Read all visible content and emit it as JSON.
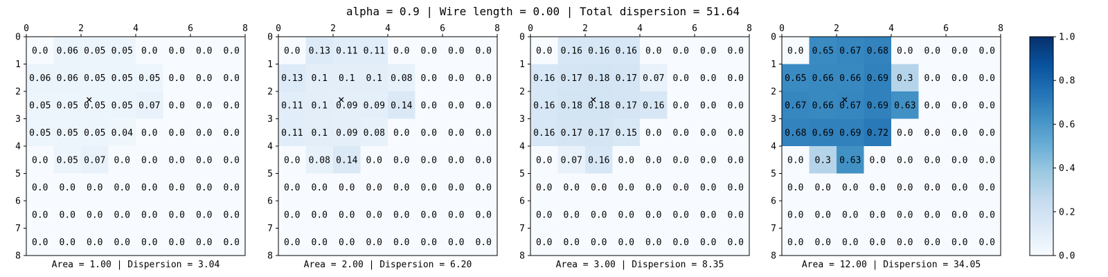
{
  "figure_title": "alpha = 0.9 | Wire length = 0.00 | Total dispersion = 51.64",
  "chart_data": [
    {
      "type": "heatmap",
      "xlabel": "Area = 1.00 | Dispersion = 3.04",
      "x_ticks": [
        "0",
        "2",
        "4",
        "6",
        "8"
      ],
      "y_ticks": [
        "0",
        "1",
        "2",
        "3",
        "4",
        "5",
        "6",
        "7",
        "8"
      ],
      "marker": {
        "x": 2.3,
        "y": 2.3,
        "symbol": "×"
      },
      "cells": [
        [
          "0.0",
          "0.06",
          "0.05",
          "0.05",
          "0.0",
          "0.0",
          "0.0",
          "0.0"
        ],
        [
          "0.06",
          "0.06",
          "0.05",
          "0.05",
          "0.05",
          "0.0",
          "0.0",
          "0.0"
        ],
        [
          "0.05",
          "0.05",
          "0.05",
          "0.05",
          "0.07",
          "0.0",
          "0.0",
          "0.0"
        ],
        [
          "0.05",
          "0.05",
          "0.05",
          "0.04",
          "0.0",
          "0.0",
          "0.0",
          "0.0"
        ],
        [
          "0.0",
          "0.05",
          "0.07",
          "0.0",
          "0.0",
          "0.0",
          "0.0",
          "0.0"
        ],
        [
          "0.0",
          "0.0",
          "0.0",
          "0.0",
          "0.0",
          "0.0",
          "0.0",
          "0.0"
        ],
        [
          "0.0",
          "0.0",
          "0.0",
          "0.0",
          "0.0",
          "0.0",
          "0.0",
          "0.0"
        ],
        [
          "0.0",
          "0.0",
          "0.0",
          "0.0",
          "0.0",
          "0.0",
          "0.0",
          "0.0"
        ]
      ]
    },
    {
      "type": "heatmap",
      "xlabel": "Area = 2.00 | Dispersion = 6.20",
      "x_ticks": [
        "0",
        "2",
        "4",
        "6",
        "8"
      ],
      "y_ticks": [
        "0",
        "1",
        "2",
        "3",
        "4",
        "5",
        "6",
        "7",
        "8"
      ],
      "marker": {
        "x": 2.3,
        "y": 2.3,
        "symbol": "×"
      },
      "cells": [
        [
          "0.0",
          "0.13",
          "0.11",
          "0.11",
          "0.0",
          "0.0",
          "0.0",
          "0.0"
        ],
        [
          "0.13",
          "0.1",
          "0.1",
          "0.1",
          "0.08",
          "0.0",
          "0.0",
          "0.0"
        ],
        [
          "0.11",
          "0.1",
          "0.09",
          "0.09",
          "0.14",
          "0.0",
          "0.0",
          "0.0"
        ],
        [
          "0.11",
          "0.1",
          "0.09",
          "0.08",
          "0.0",
          "0.0",
          "0.0",
          "0.0"
        ],
        [
          "0.0",
          "0.08",
          "0.14",
          "0.0",
          "0.0",
          "0.0",
          "0.0",
          "0.0"
        ],
        [
          "0.0",
          "0.0",
          "0.0",
          "0.0",
          "0.0",
          "0.0",
          "0.0",
          "0.0"
        ],
        [
          "0.0",
          "0.0",
          "0.0",
          "0.0",
          "0.0",
          "0.0",
          "0.0",
          "0.0"
        ],
        [
          "0.0",
          "0.0",
          "0.0",
          "0.0",
          "0.0",
          "0.0",
          "0.0",
          "0.0"
        ]
      ]
    },
    {
      "type": "heatmap",
      "xlabel": "Area = 3.00 | Dispersion = 8.35",
      "x_ticks": [
        "0",
        "2",
        "4",
        "6",
        "8"
      ],
      "y_ticks": [
        "0",
        "1",
        "2",
        "3",
        "4",
        "5",
        "6",
        "7",
        "8"
      ],
      "marker": {
        "x": 2.3,
        "y": 2.3,
        "symbol": "×"
      },
      "cells": [
        [
          "0.0",
          "0.16",
          "0.16",
          "0.16",
          "0.0",
          "0.0",
          "0.0",
          "0.0"
        ],
        [
          "0.16",
          "0.17",
          "0.18",
          "0.17",
          "0.07",
          "0.0",
          "0.0",
          "0.0"
        ],
        [
          "0.16",
          "0.18",
          "0.18",
          "0.17",
          "0.16",
          "0.0",
          "0.0",
          "0.0"
        ],
        [
          "0.16",
          "0.17",
          "0.17",
          "0.15",
          "0.0",
          "0.0",
          "0.0",
          "0.0"
        ],
        [
          "0.0",
          "0.07",
          "0.16",
          "0.0",
          "0.0",
          "0.0",
          "0.0",
          "0.0"
        ],
        [
          "0.0",
          "0.0",
          "0.0",
          "0.0",
          "0.0",
          "0.0",
          "0.0",
          "0.0"
        ],
        [
          "0.0",
          "0.0",
          "0.0",
          "0.0",
          "0.0",
          "0.0",
          "0.0",
          "0.0"
        ],
        [
          "0.0",
          "0.0",
          "0.0",
          "0.0",
          "0.0",
          "0.0",
          "0.0",
          "0.0"
        ]
      ]
    },
    {
      "type": "heatmap",
      "xlabel": "Area = 12.00 | Dispersion = 34.05",
      "x_ticks": [
        "0",
        "2",
        "4",
        "6",
        "8"
      ],
      "y_ticks": [
        "0",
        "1",
        "2",
        "3",
        "4",
        "5",
        "6",
        "7",
        "8"
      ],
      "marker": {
        "x": 2.3,
        "y": 2.3,
        "symbol": "×"
      },
      "cells": [
        [
          "0.0",
          "0.65",
          "0.67",
          "0.68",
          "0.0",
          "0.0",
          "0.0",
          "0.0"
        ],
        [
          "0.65",
          "0.66",
          "0.66",
          "0.69",
          "0.3",
          "0.0",
          "0.0",
          "0.0"
        ],
        [
          "0.67",
          "0.66",
          "0.67",
          "0.69",
          "0.63",
          "0.0",
          "0.0",
          "0.0"
        ],
        [
          "0.68",
          "0.69",
          "0.69",
          "0.72",
          "0.0",
          "0.0",
          "0.0",
          "0.0"
        ],
        [
          "0.0",
          "0.3",
          "0.63",
          "0.0",
          "0.0",
          "0.0",
          "0.0",
          "0.0"
        ],
        [
          "0.0",
          "0.0",
          "0.0",
          "0.0",
          "0.0",
          "0.0",
          "0.0",
          "0.0"
        ],
        [
          "0.0",
          "0.0",
          "0.0",
          "0.0",
          "0.0",
          "0.0",
          "0.0",
          "0.0"
        ],
        [
          "0.0",
          "0.0",
          "0.0",
          "0.0",
          "0.0",
          "0.0",
          "0.0",
          "0.0"
        ]
      ]
    }
  ],
  "colorbar": {
    "range": [
      0.0,
      1.0
    ],
    "tick_labels": [
      "0.0",
      "0.2",
      "0.4",
      "0.6",
      "0.8",
      "1.0"
    ],
    "colormap": "Blues",
    "colors": [
      "#f7fbff",
      "#deebf7",
      "#c6dbef",
      "#9ecae1",
      "#6baed6",
      "#4292c6",
      "#2171b5",
      "#08519c",
      "#08306b"
    ]
  }
}
